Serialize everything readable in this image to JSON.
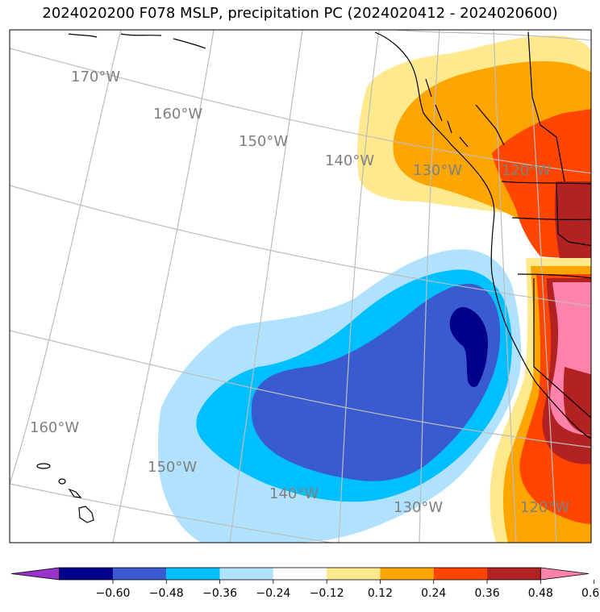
{
  "title": "2024020200 F078 MSLP, precipitation PC (2024020412 - 2024020600)",
  "map": {
    "lon_labels": [
      "170°W",
      "160°W",
      "150°W",
      "140°W",
      "130°W",
      "120°W",
      "160°W",
      "150°W",
      "140°W",
      "130°W",
      "120°W"
    ],
    "grid_color": "#bdbdbd",
    "coast_color": "#000000"
  },
  "colorbar": {
    "colors": [
      "#9933cc",
      "#00008b",
      "#3a5bd0",
      "#00bfff",
      "#b0e2ff",
      "#ffffff",
      "#ffe98f",
      "#ffa500",
      "#ff4500",
      "#b22222",
      "#ff82ab"
    ],
    "ticks": [
      "−0.60",
      "−0.48",
      "−0.36",
      "−0.24",
      "−0.12",
      "0.12",
      "0.24",
      "0.36",
      "0.48",
      "0.60"
    ]
  }
}
